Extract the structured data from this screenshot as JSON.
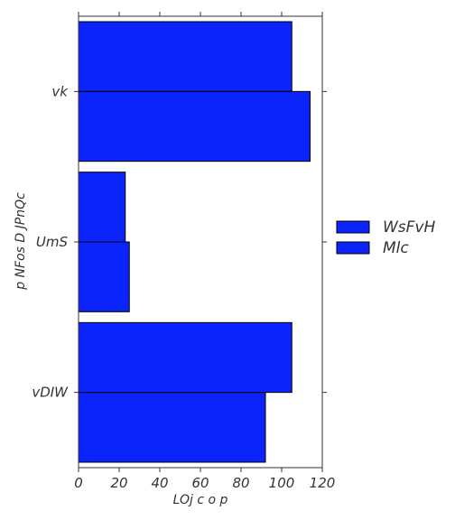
{
  "chart_data": {
    "type": "bar",
    "orientation": "horizontal",
    "categories": [
      "vk",
      "UmS",
      "vDIW"
    ],
    "series": [
      {
        "name": "WsFvH",
        "values": [
          105,
          23,
          105
        ],
        "color": "#0b24fb"
      },
      {
        "name": "Mlc",
        "values": [
          114,
          25,
          92
        ],
        "color": "#0b24fb"
      }
    ],
    "xlabel": "LOj  c  o p",
    "ylabel": "p NFos D JPnQc",
    "xlim": [
      0,
      120
    ],
    "xticks": [
      0,
      20,
      40,
      60,
      80,
      100,
      120
    ],
    "grid": false,
    "legend_position": "right"
  }
}
